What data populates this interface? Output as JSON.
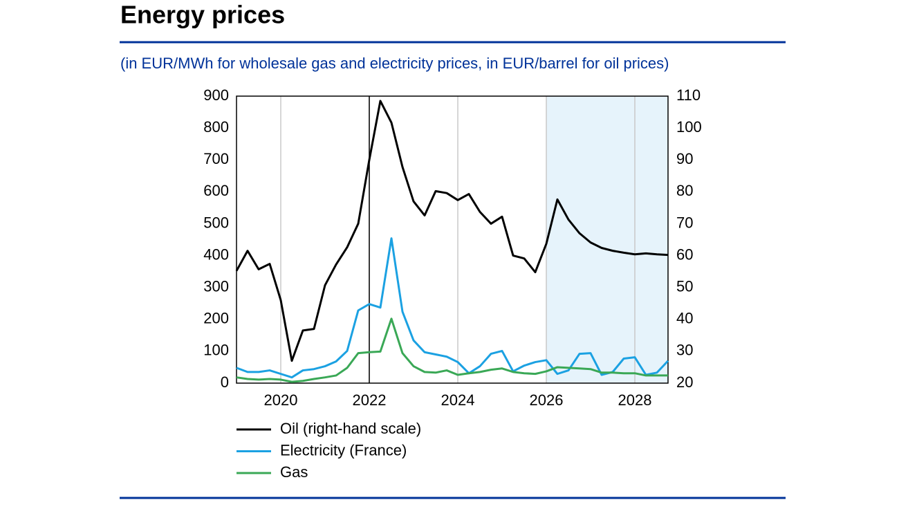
{
  "chart_data": {
    "type": "line",
    "title": "Energy prices",
    "subtitle": "(in EUR/MWh for wholesale gas and electricity prices, in EUR/barrel for oil prices)",
    "x": [
      2019,
      2019.25,
      2019.5,
      2019.75,
      2020,
      2020.25,
      2020.5,
      2020.75,
      2021,
      2021.25,
      2021.5,
      2021.75,
      2022,
      2022.25,
      2022.5,
      2022.75,
      2023,
      2023.25,
      2023.5,
      2023.75,
      2024,
      2024.25,
      2024.5,
      2024.75,
      2025,
      2025.25,
      2025.5,
      2025.75,
      2026,
      2026.25,
      2026.5,
      2026.75,
      2027,
      2027.25,
      2027.5,
      2027.75,
      2028,
      2028.25,
      2028.5,
      2028.75
    ],
    "series": [
      {
        "name": "Oil (right-hand scale)",
        "color": "#000000",
        "axis": "y2",
        "values": [
          55.2,
          61.5,
          55.7,
          57.4,
          46,
          27,
          36.5,
          37,
          50.7,
          57.2,
          62.6,
          70,
          90,
          108.5,
          101.7,
          87.8,
          77,
          72.6,
          80.2,
          79.6,
          77.4,
          79.3,
          73.7,
          70,
          72.2,
          60,
          59.1,
          54.8,
          63.7,
          77.6,
          71.3,
          67,
          64.1,
          62.4,
          61.5,
          60.9,
          60.4,
          60.7,
          60.4,
          60.2
        ]
      },
      {
        "name": "Electricity (France)",
        "color": "#1ba1e2",
        "values": [
          48,
          35,
          35,
          40,
          29,
          18,
          40,
          44,
          53,
          68,
          101,
          228,
          248,
          237,
          454,
          224,
          134,
          97,
          90,
          83,
          66,
          31,
          53,
          92,
          101,
          37,
          55,
          66,
          72,
          29,
          40,
          92,
          94,
          26,
          35,
          77,
          81,
          26,
          33,
          70
        ]
      },
      {
        "name": "Gas",
        "color": "#3aa856",
        "values": [
          18,
          13,
          11,
          13,
          11,
          4,
          7,
          13,
          18,
          24,
          48,
          94,
          97,
          99,
          202,
          94,
          53,
          35,
          33,
          40,
          26,
          31,
          35,
          42,
          46,
          35,
          31,
          29,
          37,
          50,
          48,
          46,
          44,
          33,
          33,
          31,
          31,
          24,
          24,
          24
        ]
      }
    ],
    "xlim": [
      2019,
      2028.75
    ],
    "xticks": [
      2020,
      2022,
      2024,
      2026,
      2028
    ],
    "ylim": [
      0,
      900
    ],
    "yticks": [
      0,
      100,
      200,
      300,
      400,
      500,
      600,
      700,
      800,
      900
    ],
    "y2lim": [
      20,
      110
    ],
    "y2ticks": [
      20,
      30,
      40,
      50,
      60,
      70,
      80,
      90,
      100,
      110
    ],
    "grid": "x",
    "vline": 2022,
    "shaded_range": [
      2026,
      2028.75
    ],
    "shade_color": "#e6f3fb"
  }
}
